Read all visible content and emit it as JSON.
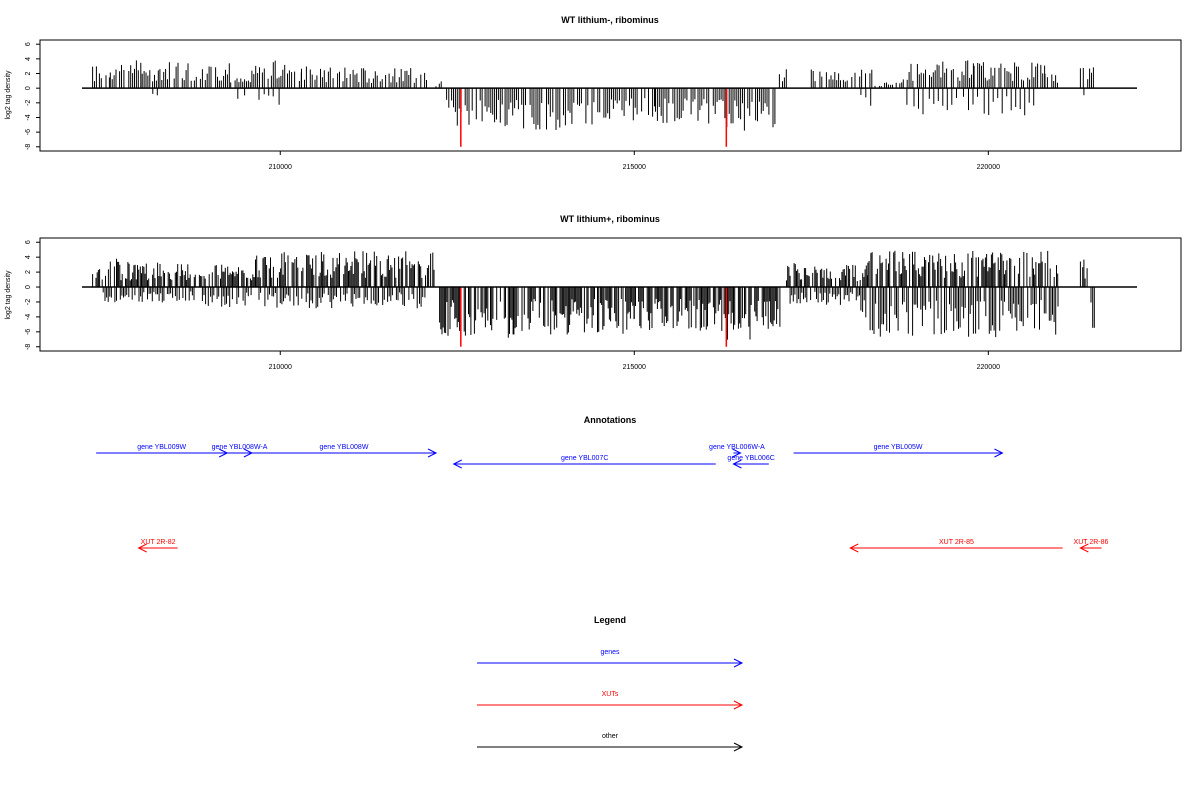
{
  "chart_data": [
    {
      "type": "bar",
      "title": "WT lithium-, ribominus",
      "xlabel": "",
      "ylabel": "log2 tag density",
      "xlim": [
        207200,
        222100
      ],
      "ylim": [
        -8.3,
        6.3
      ],
      "yticks": [
        -8,
        -6,
        -4,
        -2,
        0,
        2,
        4,
        6
      ],
      "xticks": [
        210000,
        215000,
        220000
      ],
      "xtick_labels": [
        "210000",
        "215000",
        "220000"
      ],
      "grid": false,
      "segments": [
        {
          "start": 207350,
          "end": 207600,
          "value": 3.2
        },
        {
          "start": 207600,
          "end": 208050,
          "value": 4.5
        },
        {
          "start": 208050,
          "end": 208300,
          "value": 2.5
        },
        {
          "start": 208300,
          "end": 208900,
          "value": 4.0
        },
        {
          "start": 208900,
          "end": 209300,
          "value": 3.8
        },
        {
          "start": 209300,
          "end": 209600,
          "value": 1.5
        },
        {
          "start": 209600,
          "end": 210300,
          "value": 3.8
        },
        {
          "start": 210300,
          "end": 211200,
          "value": 3.0
        },
        {
          "start": 211200,
          "end": 212100,
          "value": 2.8
        },
        {
          "start": 212200,
          "end": 212300,
          "value": 1.0
        },
        {
          "start": 212350,
          "end": 214000,
          "value": -5.8
        },
        {
          "start": 214000,
          "end": 215300,
          "value": -5.2
        },
        {
          "start": 215300,
          "end": 216200,
          "value": -5.0
        },
        {
          "start": 216200,
          "end": 217000,
          "value": -5.9
        },
        {
          "start": 217050,
          "end": 217150,
          "value": 2.8
        },
        {
          "start": 217500,
          "end": 218400,
          "value": 2.8
        },
        {
          "start": 218400,
          "end": 218800,
          "value": 0.8
        },
        {
          "start": 218800,
          "end": 219800,
          "value": 3.8
        },
        {
          "start": 219800,
          "end": 220800,
          "value": 3.6
        },
        {
          "start": 220800,
          "end": 221000,
          "value": 2.5
        },
        {
          "start": 221300,
          "end": 221500,
          "value": 3.4
        }
      ],
      "negative_dips": [
        {
          "start": 208200,
          "end": 208300,
          "value": -2.5
        },
        {
          "start": 209400,
          "end": 209500,
          "value": -1.5
        },
        {
          "start": 209700,
          "end": 210000,
          "value": -2.4
        },
        {
          "start": 218200,
          "end": 218400,
          "value": -2.8
        },
        {
          "start": 218850,
          "end": 220700,
          "value": -3.8
        },
        {
          "start": 221350,
          "end": 221400,
          "value": -2.4
        }
      ],
      "highlights": [
        {
          "x": 212550,
          "value": -8,
          "color": "#ff0000"
        },
        {
          "x": 216300,
          "value": -8,
          "color": "#ff0000"
        }
      ]
    },
    {
      "type": "bar",
      "title": "WT lithium+, ribominus",
      "xlabel": "",
      "ylabel": "log2 tag density",
      "xlim": [
        207200,
        222100
      ],
      "ylim": [
        -8.3,
        6.3
      ],
      "yticks": [
        -8,
        -6,
        -4,
        -2,
        0,
        2,
        4,
        6
      ],
      "xticks": [
        210000,
        215000,
        220000
      ],
      "xtick_labels": [
        "210000",
        "215000",
        "220000"
      ],
      "grid": false,
      "segments": [
        {
          "start": 207350,
          "end": 207600,
          "value": 3.5
        },
        {
          "start": 207600,
          "end": 207700,
          "value": 5.8
        },
        {
          "start": 207700,
          "end": 208800,
          "value": 3.4
        },
        {
          "start": 208800,
          "end": 209650,
          "value": 3.0
        },
        {
          "start": 209650,
          "end": 212200,
          "value": 4.8
        },
        {
          "start": 212250,
          "end": 213300,
          "value": -6.9
        },
        {
          "start": 213300,
          "end": 215000,
          "value": -6.4
        },
        {
          "start": 215000,
          "end": 216300,
          "value": -6.0
        },
        {
          "start": 216300,
          "end": 217100,
          "value": -7.2
        },
        {
          "start": 217150,
          "end": 218300,
          "value": 3.2
        },
        {
          "start": 218300,
          "end": 221000,
          "value": 4.9
        },
        {
          "start": 221300,
          "end": 221400,
          "value": 4.3
        }
      ],
      "negative_dips": [
        {
          "start": 207500,
          "end": 208800,
          "value": -2.2
        },
        {
          "start": 208900,
          "end": 209600,
          "value": -2.7
        },
        {
          "start": 209700,
          "end": 212100,
          "value": -2.9
        },
        {
          "start": 217200,
          "end": 218200,
          "value": -2.5
        },
        {
          "start": 218200,
          "end": 221000,
          "value": -6.8
        },
        {
          "start": 221450,
          "end": 221500,
          "value": -5.6
        }
      ],
      "highlights": [
        {
          "x": 212550,
          "value": -8,
          "color": "#ff0000"
        },
        {
          "x": 216300,
          "value": -8,
          "color": "#ff0000"
        }
      ]
    }
  ],
  "annotations": {
    "title": "Annotations",
    "genes": [
      {
        "label": "gene YBL009W",
        "color": "#0000ff",
        "from": 207400,
        "to": 209250,
        "direction": "right",
        "row": 1
      },
      {
        "label": "gene YBL008W-A",
        "color": "#0000ff",
        "from": 209250,
        "to": 209600,
        "direction": "right",
        "row": 1
      },
      {
        "label": "gene YBL008W",
        "color": "#0000ff",
        "from": 209600,
        "to": 212200,
        "direction": "right",
        "row": 1
      },
      {
        "label": "gene YBL007C",
        "color": "#0000ff",
        "from": 212450,
        "to": 216150,
        "direction": "left",
        "row": 2
      },
      {
        "label": "gene YBL006W-A",
        "color": "#0000ff",
        "from": 216400,
        "to": 216500,
        "direction": "right",
        "row": 1
      },
      {
        "label": "gene YBL006C",
        "color": "#0000ff",
        "from": 216400,
        "to": 216900,
        "direction": "left",
        "row": 2
      },
      {
        "label": "gene YBL005W",
        "color": "#0000ff",
        "from": 217250,
        "to": 220200,
        "direction": "right",
        "row": 1
      }
    ],
    "xuts": [
      {
        "label": "XUT 2R-82",
        "color": "#ff0000",
        "from": 208000,
        "to": 208550,
        "direction": "left"
      },
      {
        "label": "XUT 2R-85",
        "color": "#ff0000",
        "from": 218050,
        "to": 221050,
        "direction": "left"
      },
      {
        "label": "XUT 2R-86",
        "color": "#ff0000",
        "from": 221300,
        "to": 221600,
        "direction": "left"
      }
    ]
  },
  "legend": {
    "title": "Legend",
    "items": [
      {
        "label": "genes",
        "color": "#0000ff"
      },
      {
        "label": "XUTs",
        "color": "#ff0000"
      },
      {
        "label": "other",
        "color": "#000000"
      }
    ]
  }
}
